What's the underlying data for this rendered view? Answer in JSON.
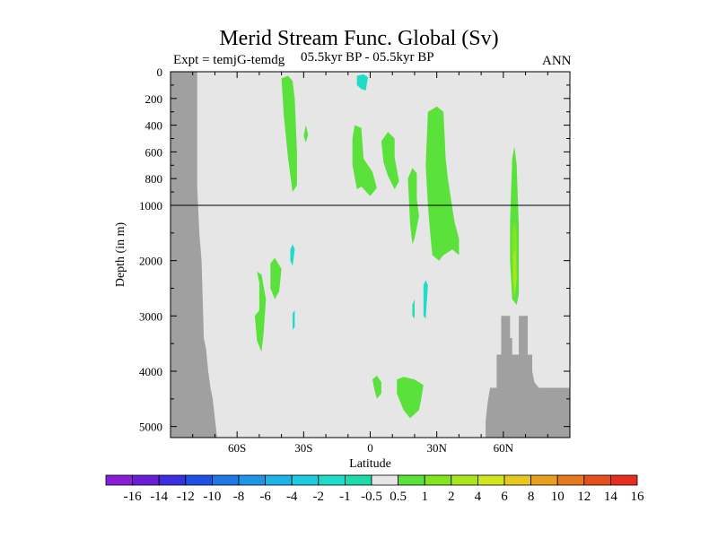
{
  "chart_data": {
    "type": "heatmap",
    "title": "Merid Stream Func. Global (Sv)",
    "subtitle_left": "Expt = temjG-temdg",
    "subtitle_center": "05.5kyr BP - 05.5kyr BP",
    "subtitle_right": "ANN",
    "xlabel": "Latitude",
    "ylabel": "Depth (in m)",
    "x_ticks": [
      "60S",
      "30S",
      "0",
      "30N",
      "60N"
    ],
    "x_tick_values": [
      -60,
      -30,
      0,
      30,
      60
    ],
    "xlim": [
      -90,
      90
    ],
    "y_ticks_upper": [
      "0",
      "200",
      "400",
      "600",
      "800",
      "1000"
    ],
    "y_tick_values_upper": [
      0,
      200,
      400,
      600,
      800,
      1000
    ],
    "y_ticks_lower": [
      "2000",
      "3000",
      "4000",
      "5000"
    ],
    "y_tick_values_lower": [
      2000,
      3000,
      4000,
      5000
    ],
    "ylim": [
      0,
      5200
    ],
    "y_scale_break": 1000,
    "colorbar_labels": [
      "-16",
      "-14",
      "-12",
      "-10",
      "-8",
      "-6",
      "-4",
      "-2",
      "-1",
      "-0.5",
      "0.5",
      "1",
      "2",
      "4",
      "6",
      "8",
      "10",
      "12",
      "14",
      "16"
    ],
    "colorbar_colors": [
      "#8a1ed8",
      "#6a1ed8",
      "#3c2fe0",
      "#1e50e6",
      "#1e78e6",
      "#1e96e6",
      "#1eb4e6",
      "#1ecce0",
      "#1edcc8",
      "#1edcaa",
      "#e6e6e6",
      "#5ae13c",
      "#82e61e",
      "#aae61e",
      "#d2e61e",
      "#e6c81e",
      "#e6a01e",
      "#e6781e",
      "#e6501e",
      "#e62d1e"
    ],
    "background_color": "#e6e6e6",
    "land_color": "#a0a0a0",
    "regions": [
      {
        "value": 1,
        "poly": [
          [
            -40,
            50
          ],
          [
            -37,
            30
          ],
          [
            -35,
            70
          ],
          [
            -34,
            200
          ],
          [
            -33,
            600
          ],
          [
            -33,
            850
          ],
          [
            -35,
            900
          ],
          [
            -37,
            650
          ],
          [
            -39,
            320
          ]
        ]
      },
      {
        "value": 1,
        "poly": [
          [
            -30,
            480
          ],
          [
            -29,
            400
          ],
          [
            -28,
            470
          ],
          [
            -29,
            530
          ]
        ]
      },
      {
        "value": 1,
        "poly": [
          [
            -8,
            500
          ],
          [
            -7,
            400
          ],
          [
            -4,
            420
          ],
          [
            -3,
            650
          ],
          [
            1,
            750
          ],
          [
            3,
            870
          ],
          [
            0,
            930
          ],
          [
            -4,
            860
          ],
          [
            -6,
            880
          ],
          [
            -8,
            700
          ]
        ]
      },
      {
        "value": 1,
        "poly": [
          [
            5,
            520
          ],
          [
            8,
            450
          ],
          [
            11,
            500
          ],
          [
            11,
            640
          ],
          [
            13,
            820
          ],
          [
            11,
            880
          ],
          [
            8,
            780
          ],
          [
            6,
            680
          ]
        ]
      },
      {
        "value": 1,
        "poly": [
          [
            17,
            800
          ],
          [
            19,
            720
          ],
          [
            21,
            760
          ],
          [
            21,
            950
          ],
          [
            22,
            1200
          ],
          [
            20,
            1600
          ],
          [
            19,
            1700
          ],
          [
            18,
            1350
          ]
        ]
      },
      {
        "value": 1,
        "poly": [
          [
            26,
            300
          ],
          [
            30,
            260
          ],
          [
            33,
            300
          ],
          [
            34,
            650
          ],
          [
            35,
            800
          ],
          [
            38,
            1300
          ],
          [
            40,
            1600
          ],
          [
            40,
            1900
          ],
          [
            37,
            1800
          ],
          [
            33,
            1900
          ],
          [
            31,
            2000
          ],
          [
            28,
            1900
          ],
          [
            27,
            1500
          ],
          [
            26,
            1000
          ],
          [
            25,
            700
          ]
        ]
      },
      {
        "value": 1,
        "poly": [
          [
            -50,
            2400
          ],
          [
            -51,
            2200
          ],
          [
            -49,
            2250
          ],
          [
            -47,
            2700
          ],
          [
            -48,
            3300
          ],
          [
            -49,
            3650
          ],
          [
            -51,
            3450
          ],
          [
            -52,
            3000
          ],
          [
            -50,
            2900
          ]
        ]
      },
      {
        "value": 1,
        "poly": [
          [
            -45,
            2050
          ],
          [
            -43,
            1950
          ],
          [
            -40,
            2150
          ],
          [
            -41,
            2550
          ],
          [
            -43,
            2700
          ],
          [
            -45,
            2500
          ]
        ]
      },
      {
        "value": 1,
        "poly": [
          [
            12,
            4150
          ],
          [
            15,
            4100
          ],
          [
            20,
            4150
          ],
          [
            24,
            4250
          ],
          [
            23,
            4500
          ],
          [
            22,
            4700
          ],
          [
            18,
            4850
          ],
          [
            15,
            4700
          ],
          [
            12,
            4400
          ]
        ]
      },
      {
        "value": 1,
        "poly": [
          [
            1,
            4150
          ],
          [
            3,
            4080
          ],
          [
            5,
            4200
          ],
          [
            5,
            4400
          ],
          [
            3,
            4500
          ],
          [
            2,
            4350
          ]
        ]
      },
      {
        "value": -1,
        "poly": [
          [
            -6,
            30
          ],
          [
            -3,
            20
          ],
          [
            -1,
            40
          ],
          [
            -2,
            140
          ],
          [
            -4,
            130
          ],
          [
            -6,
            100
          ]
        ]
      },
      {
        "value": -1,
        "poly": [
          [
            -36,
            1800
          ],
          [
            -35,
            1700
          ],
          [
            -34,
            1800
          ],
          [
            -35,
            2100
          ],
          [
            -36,
            2000
          ]
        ]
      },
      {
        "value": -1,
        "poly": [
          [
            -35,
            2950
          ],
          [
            -34,
            2900
          ],
          [
            -34,
            3200
          ],
          [
            -35,
            3250
          ]
        ]
      },
      {
        "value": -1,
        "poly": [
          [
            24,
            2450
          ],
          [
            25,
            2350
          ],
          [
            26,
            2450
          ],
          [
            25,
            3050
          ],
          [
            24,
            3000
          ]
        ]
      },
      {
        "value": -0.5,
        "poly": [
          [
            19,
            2800
          ],
          [
            20,
            2700
          ],
          [
            20,
            3050
          ],
          [
            19,
            3000
          ]
        ]
      },
      {
        "value": 1,
        "poly": [
          [
            64,
            650
          ],
          [
            65,
            560
          ],
          [
            66,
            700
          ],
          [
            67,
            1400
          ],
          [
            67,
            2600
          ],
          [
            66,
            2800
          ],
          [
            64,
            2700
          ],
          [
            63,
            2000
          ],
          [
            63,
            1300
          ]
        ]
      },
      {
        "value": 2,
        "poly": [
          [
            64,
            1500
          ],
          [
            65,
            1300
          ],
          [
            66,
            1500
          ],
          [
            66,
            2400
          ],
          [
            65,
            2700
          ],
          [
            64,
            2300
          ]
        ]
      },
      {
        "value": 4,
        "poly": [
          [
            64.5,
            1900
          ],
          [
            65.5,
            1800
          ],
          [
            66,
            2300
          ],
          [
            65,
            2600
          ],
          [
            64.5,
            2300
          ]
        ]
      }
    ],
    "land": [
      [
        [
          -90,
          0
        ],
        [
          -78,
          0
        ],
        [
          -78,
          860
        ],
        [
          -77,
          1500
        ],
        [
          -76,
          2000
        ],
        [
          -75,
          3400
        ],
        [
          -74,
          3600
        ],
        [
          -73,
          4000
        ],
        [
          -72,
          4300
        ],
        [
          -71,
          4500
        ],
        [
          -70,
          4850
        ],
        [
          -69,
          5200
        ],
        [
          -90,
          5200
        ]
      ],
      [
        [
          52,
          5200
        ],
        [
          52,
          4900
        ],
        [
          53,
          4550
        ],
        [
          54,
          4300
        ],
        [
          57,
          4300
        ],
        [
          57,
          3700
        ],
        [
          59,
          3700
        ],
        [
          59,
          3000
        ],
        [
          63,
          3000
        ],
        [
          63,
          3400
        ],
        [
          64,
          3400
        ],
        [
          64,
          3700
        ],
        [
          67,
          3700
        ],
        [
          67,
          3000
        ],
        [
          71,
          3000
        ],
        [
          71,
          3700
        ],
        [
          73,
          3700
        ],
        [
          73,
          4000
        ],
        [
          74,
          4200
        ],
        [
          76,
          4300
        ],
        [
          90,
          4300
        ],
        [
          90,
          5200
        ]
      ]
    ]
  }
}
